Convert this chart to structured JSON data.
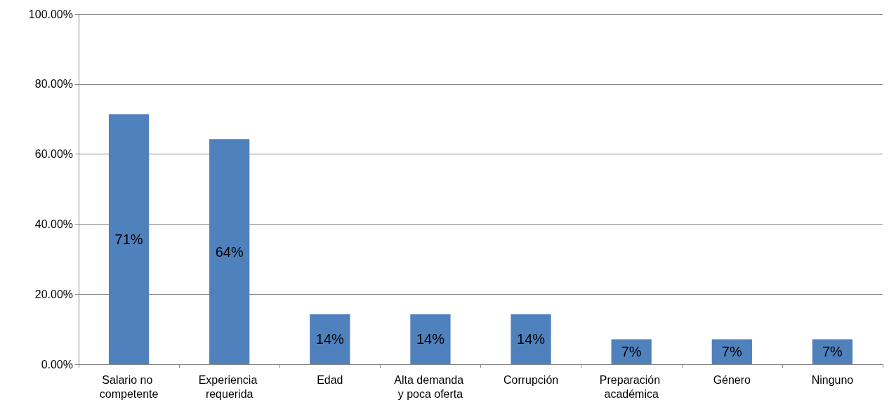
{
  "chart_data": {
    "type": "bar",
    "categories": [
      "Salario no competente",
      "Experiencia requerida",
      "Edad",
      "Alta demanda y poca oferta",
      "Corrupción",
      "Preparación académica",
      "Género",
      "Ninguno"
    ],
    "values": [
      71.4,
      64.3,
      14.3,
      14.3,
      14.3,
      7.1,
      7.1,
      7.1
    ],
    "value_labels": [
      "71%",
      "64%",
      "14%",
      "14%",
      "14%",
      "7%",
      "7%",
      "7%"
    ],
    "color": "#4f81bd",
    "ylim": [
      0,
      100
    ],
    "yticks": [
      {
        "value": 0,
        "label": "0.00%"
      },
      {
        "value": 20,
        "label": "20.00%"
      },
      {
        "value": 40,
        "label": "40.00%"
      },
      {
        "value": 60,
        "label": "60.00%"
      },
      {
        "value": 80,
        "label": "80.00%"
      },
      {
        "value": 100,
        "label": "100.00%"
      }
    ],
    "grid": "y"
  }
}
